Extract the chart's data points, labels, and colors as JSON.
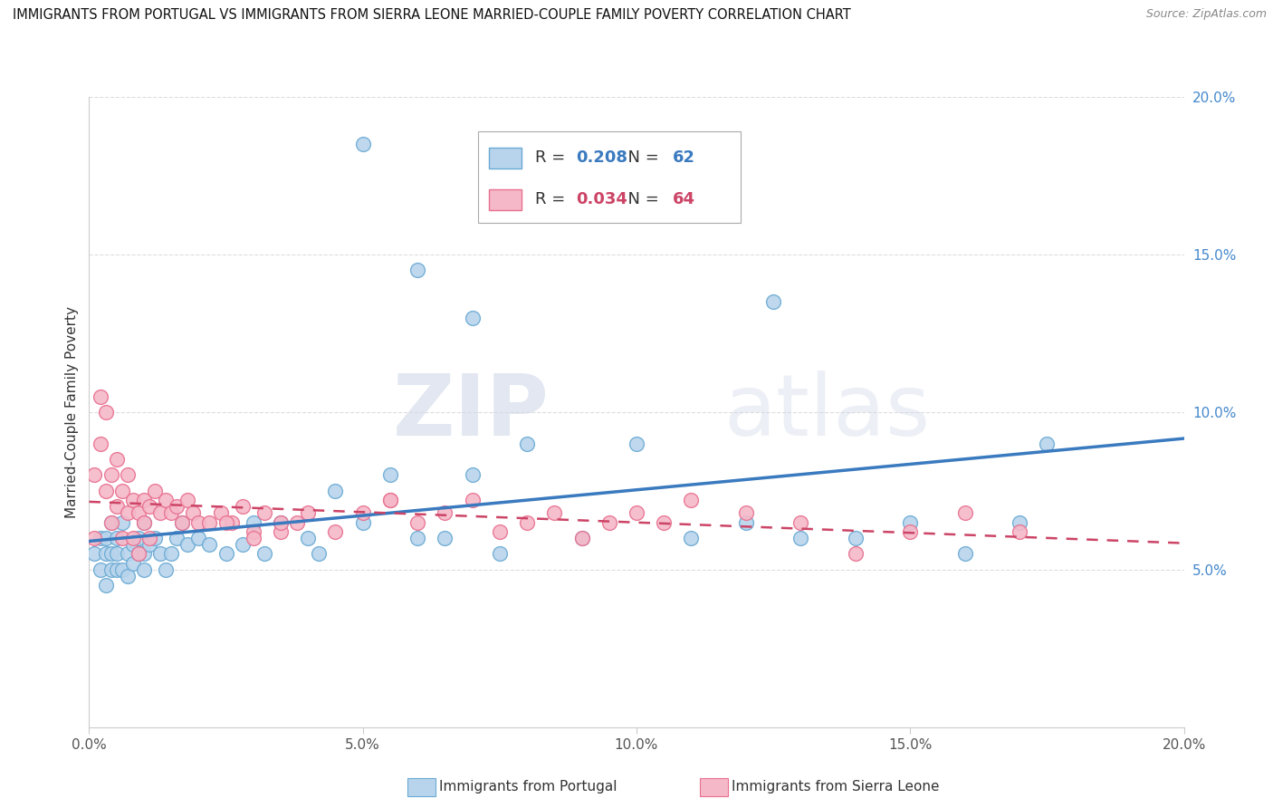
{
  "title": "IMMIGRANTS FROM PORTUGAL VS IMMIGRANTS FROM SIERRA LEONE MARRIED-COUPLE FAMILY POVERTY CORRELATION CHART",
  "source": "Source: ZipAtlas.com",
  "ylabel": "Married-Couple Family Poverty",
  "xlabel_label_portugal": "Immigrants from Portugal",
  "xlabel_label_sierraleone": "Immigrants from Sierra Leone",
  "xlim": [
    0.0,
    0.2
  ],
  "ylim": [
    0.0,
    0.2
  ],
  "xticks": [
    0.0,
    0.05,
    0.1,
    0.15,
    0.2
  ],
  "yticks": [
    0.05,
    0.1,
    0.15,
    0.2
  ],
  "xtick_labels": [
    "0.0%",
    "5.0%",
    "10.0%",
    "15.0%",
    "20.0%"
  ],
  "ytick_labels": [
    "5.0%",
    "10.0%",
    "15.0%",
    "20.0%"
  ],
  "portugal_R": 0.208,
  "portugal_N": 62,
  "sierraleone_R": 0.034,
  "sierraleone_N": 64,
  "portugal_color": "#b8d4ec",
  "sierraleone_color": "#f5b8c8",
  "portugal_edge": "#6aaad4",
  "sierraleone_edge": "#e87090",
  "trendline_portugal_color": "#3a7abf",
  "trendline_sierraleone_color": "#cc4466",
  "watermark_zip": "ZIP",
  "watermark_atlas": "atlas",
  "background_color": "#ffffff",
  "grid_color": "#dddddd",
  "portugal_x": [
    0.001,
    0.002,
    0.002,
    0.003,
    0.003,
    0.003,
    0.004,
    0.004,
    0.004,
    0.005,
    0.005,
    0.005,
    0.006,
    0.006,
    0.007,
    0.007,
    0.008,
    0.008,
    0.009,
    0.009,
    0.01,
    0.01,
    0.01,
    0.011,
    0.012,
    0.013,
    0.014,
    0.015,
    0.016,
    0.017,
    0.018,
    0.02,
    0.022,
    0.025,
    0.028,
    0.03,
    0.032,
    0.035,
    0.04,
    0.042,
    0.045,
    0.05,
    0.055,
    0.06,
    0.065,
    0.07,
    0.075,
    0.08,
    0.09,
    0.1,
    0.11,
    0.12,
    0.13,
    0.14,
    0.15,
    0.16,
    0.17,
    0.175,
    0.05,
    0.06,
    0.07,
    0.125
  ],
  "portugal_y": [
    0.055,
    0.06,
    0.05,
    0.055,
    0.045,
    0.06,
    0.05,
    0.065,
    0.055,
    0.05,
    0.06,
    0.055,
    0.05,
    0.065,
    0.055,
    0.048,
    0.058,
    0.052,
    0.055,
    0.06,
    0.05,
    0.065,
    0.055,
    0.058,
    0.06,
    0.055,
    0.05,
    0.055,
    0.06,
    0.065,
    0.058,
    0.06,
    0.058,
    0.055,
    0.058,
    0.065,
    0.055,
    0.065,
    0.06,
    0.055,
    0.075,
    0.065,
    0.08,
    0.06,
    0.06,
    0.08,
    0.055,
    0.09,
    0.06,
    0.09,
    0.06,
    0.065,
    0.06,
    0.06,
    0.065,
    0.055,
    0.065,
    0.09,
    0.185,
    0.145,
    0.13,
    0.135
  ],
  "sierraleone_x": [
    0.001,
    0.001,
    0.002,
    0.002,
    0.003,
    0.003,
    0.004,
    0.004,
    0.005,
    0.005,
    0.006,
    0.006,
    0.007,
    0.007,
    0.008,
    0.008,
    0.009,
    0.009,
    0.01,
    0.01,
    0.011,
    0.011,
    0.012,
    0.013,
    0.014,
    0.015,
    0.016,
    0.017,
    0.018,
    0.019,
    0.02,
    0.022,
    0.024,
    0.026,
    0.028,
    0.03,
    0.032,
    0.035,
    0.038,
    0.04,
    0.045,
    0.05,
    0.055,
    0.06,
    0.065,
    0.07,
    0.075,
    0.08,
    0.085,
    0.09,
    0.095,
    0.1,
    0.105,
    0.11,
    0.12,
    0.13,
    0.14,
    0.15,
    0.16,
    0.17,
    0.055,
    0.035,
    0.025,
    0.03
  ],
  "sierraleone_y": [
    0.08,
    0.06,
    0.105,
    0.09,
    0.1,
    0.075,
    0.08,
    0.065,
    0.085,
    0.07,
    0.075,
    0.06,
    0.08,
    0.068,
    0.072,
    0.06,
    0.068,
    0.055,
    0.072,
    0.065,
    0.07,
    0.06,
    0.075,
    0.068,
    0.072,
    0.068,
    0.07,
    0.065,
    0.072,
    0.068,
    0.065,
    0.065,
    0.068,
    0.065,
    0.07,
    0.062,
    0.068,
    0.062,
    0.065,
    0.068,
    0.062,
    0.068,
    0.072,
    0.065,
    0.068,
    0.072,
    0.062,
    0.065,
    0.068,
    0.06,
    0.065,
    0.068,
    0.065,
    0.072,
    0.068,
    0.065,
    0.055,
    0.062,
    0.068,
    0.062,
    0.072,
    0.065,
    0.065,
    0.06
  ]
}
